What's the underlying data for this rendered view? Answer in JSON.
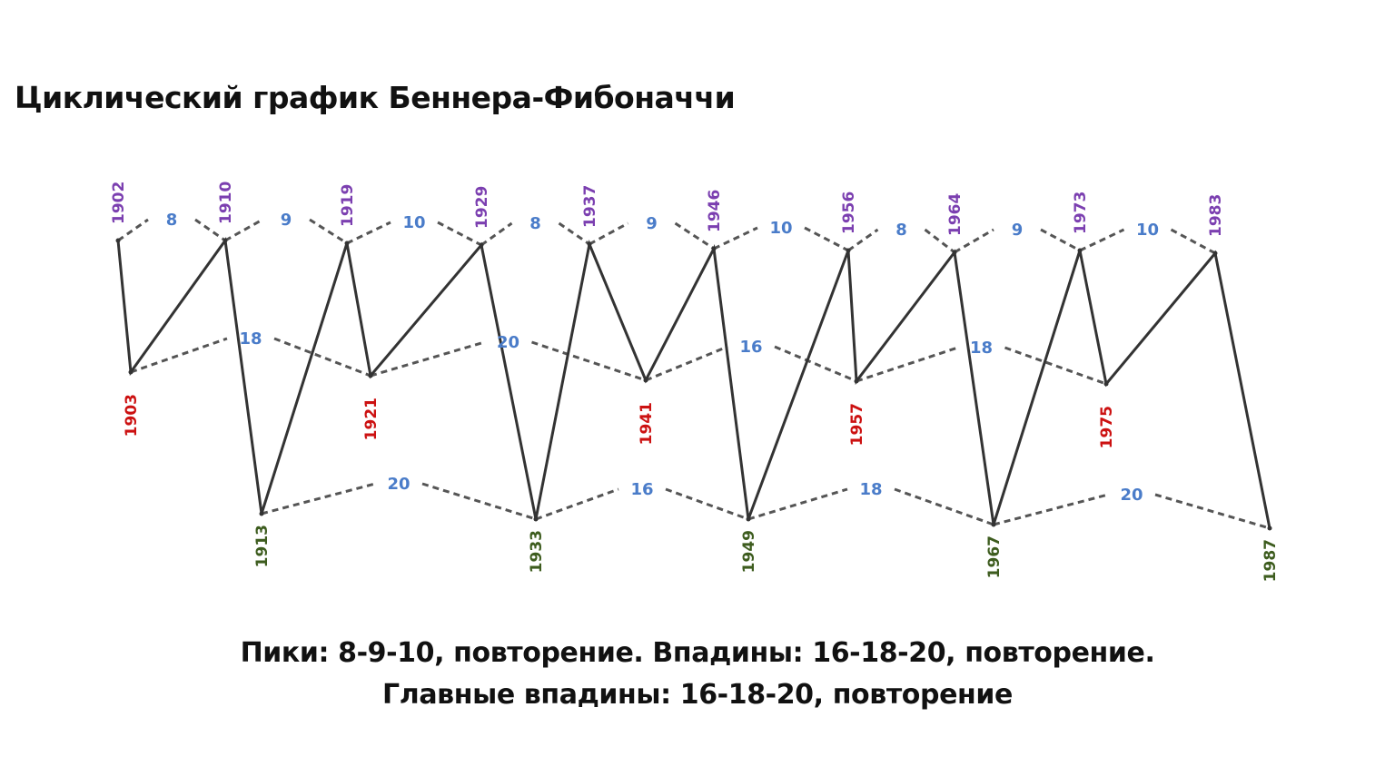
{
  "title": "Циклический график Беннера-Фибоначчи",
  "caption": {
    "line1": "Пики: 8-9-10, повторение. Впадины: 16-18-20, повторение.",
    "line2": "Главные впадины: 16-18-20, повторение"
  },
  "colors": {
    "peak_year": "#7b3fb0",
    "trough_year": "#cc1111",
    "major_trough_year": "#3d5c1e",
    "interval": "#4a7cc9",
    "line": "#333333",
    "dashed": "#555555"
  },
  "chart_data": {
    "type": "line",
    "title": "Циклический график Беннера-Фибоначчи",
    "x_unit": "year",
    "levels": [
      "peak",
      "trough",
      "major_trough"
    ],
    "main_line": [
      1902,
      1903,
      1910,
      1913,
      1919,
      1921,
      1929,
      1933,
      1937,
      1941,
      1946,
      1949,
      1956,
      1957,
      1964,
      1967,
      1973,
      1975,
      1983,
      1987
    ],
    "peaks": {
      "years": [
        "1902",
        "1910",
        "1919",
        "1929",
        "1937",
        "1946",
        "1956",
        "1964",
        "1973",
        "1983"
      ],
      "intervals": [
        "8",
        "9",
        "10",
        "8",
        "9",
        "10",
        "8",
        "9",
        "10"
      ]
    },
    "troughs": {
      "years": [
        "1903",
        "1921",
        "1941",
        "1957",
        "1975"
      ],
      "intervals": [
        "18",
        "20",
        "16",
        "18"
      ]
    },
    "major_troughs": {
      "years": [
        "1913",
        "1933",
        "1949",
        "1967",
        "1987"
      ],
      "intervals": [
        "20",
        "16",
        "18",
        "20"
      ]
    }
  }
}
